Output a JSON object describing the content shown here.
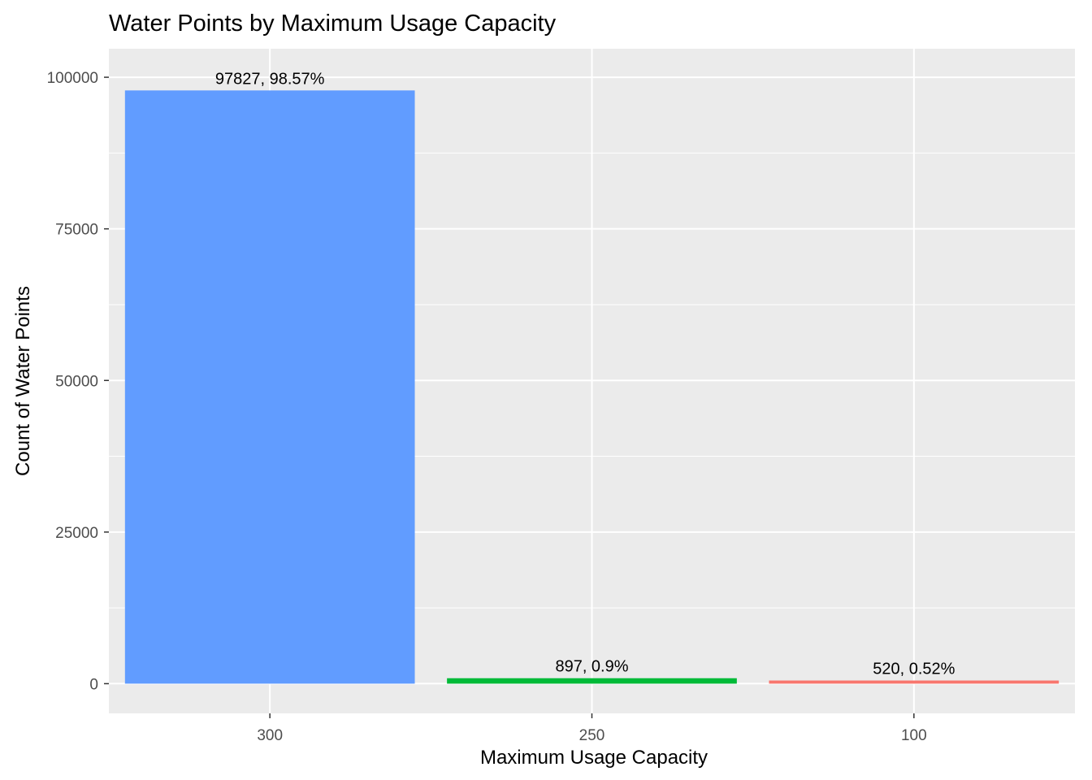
{
  "chart_data": {
    "type": "bar",
    "title": "Water Points by Maximum Usage Capacity",
    "xlabel": "Maximum Usage Capacity",
    "ylabel": "Count of Water Points",
    "categories": [
      "300",
      "250",
      "100"
    ],
    "values": [
      97827,
      897,
      520
    ],
    "data_labels": [
      "97827, 98.57%",
      "897, 0.9%",
      "520, 0.52%"
    ],
    "colors": [
      "#619CFF",
      "#00BA38",
      "#F8766D"
    ],
    "ylim": [
      -4900,
      104700
    ],
    "y_ticks": [
      0,
      25000,
      50000,
      75000,
      100000
    ],
    "y_tick_labels": [
      "0",
      "25000",
      "50000",
      "75000",
      "100000"
    ],
    "panel_background": "#EBEBEB",
    "grid": true,
    "legend": "none"
  }
}
